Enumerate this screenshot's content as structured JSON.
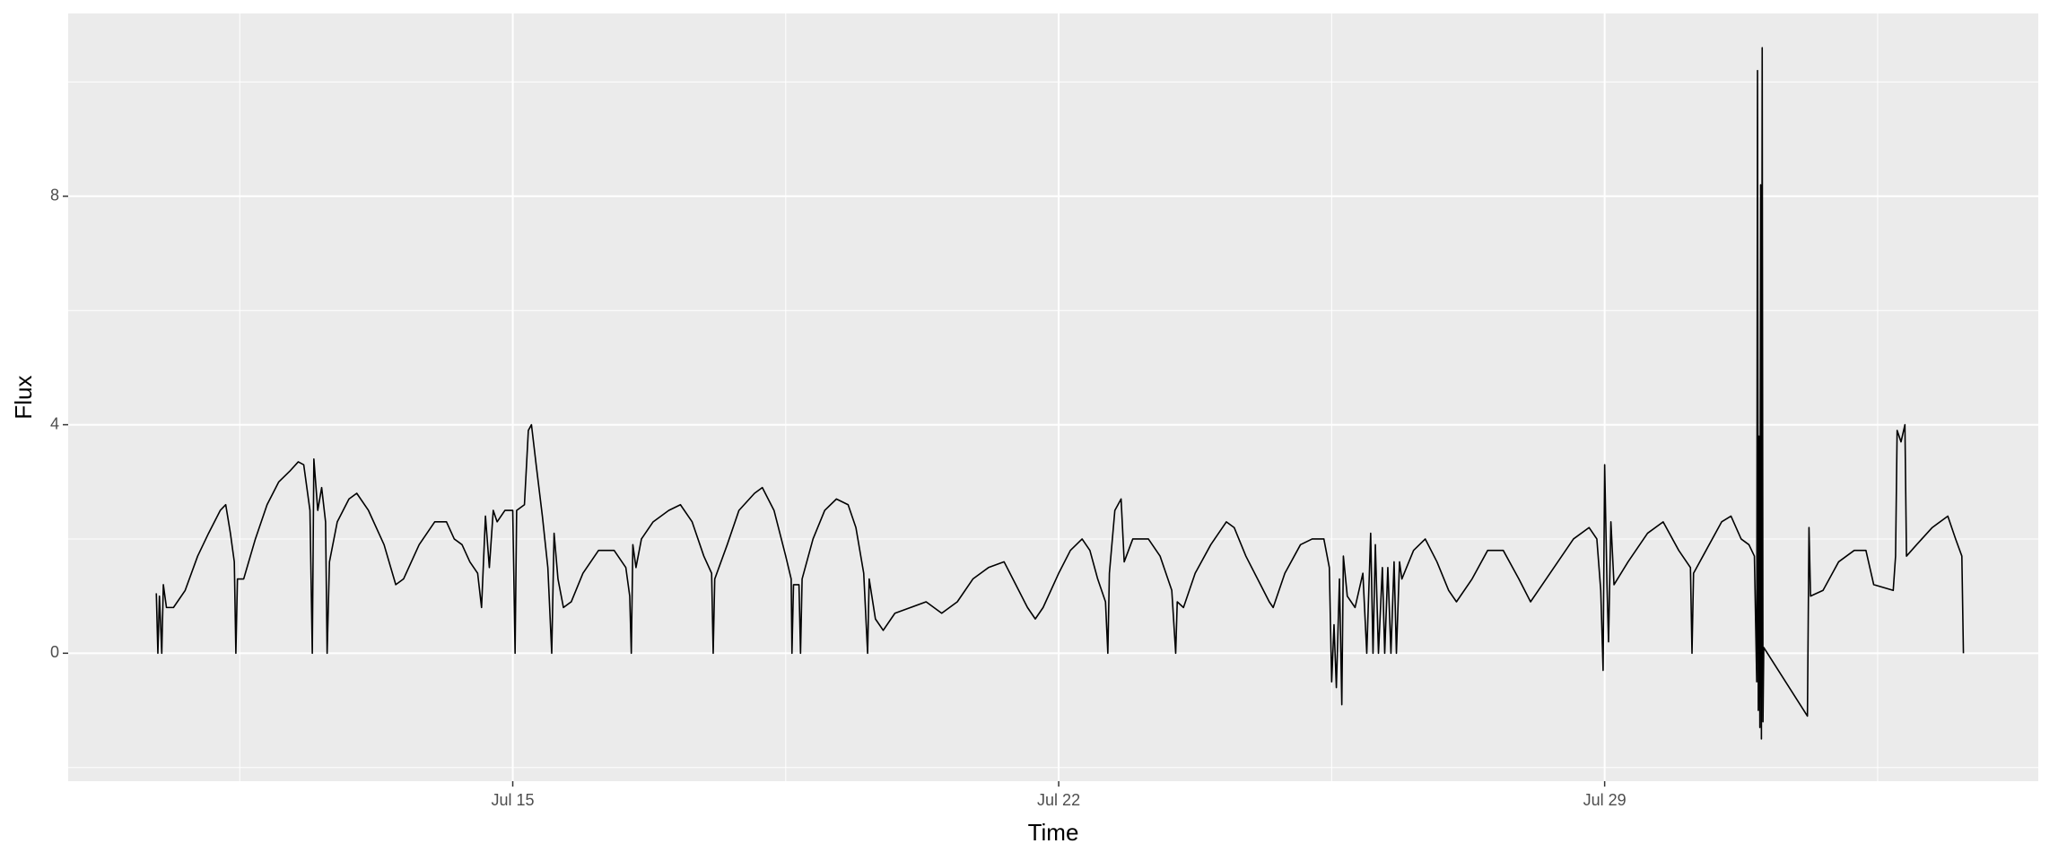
{
  "chart_data": {
    "type": "line",
    "x_label": "Time",
    "y_label": "Flux",
    "color": "#000000",
    "x": [
      10.43,
      10.45,
      10.47,
      10.5,
      10.52,
      10.56,
      10.65,
      10.8,
      10.96,
      11.1,
      11.25,
      11.32,
      11.38,
      11.43,
      11.45,
      11.47,
      11.55,
      11.7,
      11.85,
      12.0,
      12.15,
      12.25,
      12.32,
      12.4,
      12.43,
      12.45,
      12.5,
      12.55,
      12.6,
      12.62,
      12.65,
      12.75,
      12.9,
      13.0,
      13.15,
      13.35,
      13.5,
      13.6,
      13.8,
      14.0,
      14.15,
      14.25,
      14.35,
      14.45,
      14.55,
      14.6,
      14.65,
      14.7,
      14.75,
      14.8,
      14.9,
      15.0,
      15.03,
      15.05,
      15.15,
      15.2,
      15.24,
      15.3,
      15.38,
      15.45,
      15.5,
      15.53,
      15.58,
      15.65,
      15.75,
      15.9,
      16.1,
      16.3,
      16.45,
      16.5,
      16.52,
      16.54,
      16.58,
      16.65,
      16.8,
      17.0,
      17.15,
      17.3,
      17.45,
      17.55,
      17.57,
      17.59,
      17.75,
      17.9,
      18.1,
      18.2,
      18.35,
      18.5,
      18.57,
      18.58,
      18.6,
      18.67,
      18.69,
      18.71,
      18.85,
      19.0,
      19.15,
      19.3,
      19.4,
      19.5,
      19.55,
      19.57,
      19.65,
      19.75,
      19.9,
      20.1,
      20.3,
      20.5,
      20.7,
      20.9,
      21.1,
      21.3,
      21.45,
      21.6,
      21.7,
      21.8,
      22.0,
      22.15,
      22.3,
      22.4,
      22.5,
      22.6,
      22.63,
      22.65,
      22.72,
      22.8,
      22.84,
      22.95,
      23.15,
      23.3,
      23.45,
      23.5,
      23.52,
      23.6,
      23.75,
      23.95,
      24.15,
      24.25,
      24.4,
      24.55,
      24.7,
      24.75,
      24.9,
      25.1,
      25.25,
      25.4,
      25.47,
      25.5,
      25.53,
      25.56,
      25.6,
      25.63,
      25.65,
      25.7,
      25.8,
      25.9,
      25.95,
      26.0,
      26.03,
      26.06,
      26.1,
      26.15,
      26.18,
      26.22,
      26.26,
      26.3,
      26.33,
      26.37,
      26.4,
      26.55,
      26.7,
      26.85,
      27.0,
      27.1,
      27.3,
      27.5,
      27.7,
      27.9,
      28.05,
      28.2,
      28.4,
      28.6,
      28.8,
      28.9,
      28.95,
      28.98,
      29.0,
      29.03,
      29.05,
      29.08,
      29.12,
      29.3,
      29.55,
      29.75,
      29.95,
      30.1,
      30.12,
      30.14,
      30.3,
      30.5,
      30.62,
      30.75,
      30.85,
      30.92,
      30.95,
      30.96,
      30.97,
      30.98,
      30.99,
      31.0,
      31.01,
      31.02,
      31.03,
      31.04,
      31.6,
      31.62,
      31.64,
      31.8,
      32.0,
      32.2,
      32.35,
      32.45,
      32.7,
      32.73,
      32.75,
      32.8,
      32.85,
      32.87,
      33.0,
      33.2,
      33.4,
      33.5,
      33.58,
      33.6
    ],
    "values": [
      1.05,
      0,
      1.0,
      0,
      1.2,
      0.8,
      0.8,
      1.1,
      1.7,
      2.1,
      2.5,
      2.6,
      2.1,
      1.6,
      0,
      1.3,
      1.3,
      2.0,
      2.6,
      3.0,
      3.2,
      3.35,
      3.3,
      2.5,
      0,
      3.4,
      2.5,
      2.9,
      2.3,
      0,
      1.6,
      2.3,
      2.7,
      2.8,
      2.5,
      1.9,
      1.2,
      1.3,
      1.9,
      2.3,
      2.3,
      2.0,
      1.9,
      1.6,
      1.4,
      0.8,
      2.4,
      1.5,
      2.5,
      2.3,
      2.5,
      2.5,
      0,
      2.5,
      2.6,
      3.9,
      4.0,
      3.3,
      2.4,
      1.5,
      0,
      2.1,
      1.3,
      0.8,
      0.9,
      1.4,
      1.8,
      1.8,
      1.5,
      1.0,
      0,
      1.9,
      1.5,
      2.0,
      2.3,
      2.5,
      2.6,
      2.3,
      1.7,
      1.4,
      0,
      1.3,
      1.9,
      2.5,
      2.8,
      2.9,
      2.5,
      1.7,
      1.3,
      0,
      1.2,
      1.2,
      0,
      1.3,
      2.0,
      2.5,
      2.7,
      2.6,
      2.2,
      1.4,
      0,
      1.3,
      0.6,
      0.4,
      0.7,
      0.8,
      0.9,
      0.7,
      0.9,
      1.3,
      1.5,
      1.6,
      1.2,
      0.8,
      0.6,
      0.8,
      1.4,
      1.8,
      2.0,
      1.8,
      1.3,
      0.9,
      0,
      1.4,
      2.5,
      2.7,
      1.6,
      2.0,
      2.0,
      1.7,
      1.1,
      0,
      0.9,
      0.8,
      1.4,
      1.9,
      2.3,
      2.2,
      1.7,
      1.3,
      0.9,
      0.8,
      1.4,
      1.9,
      2.0,
      2.0,
      1.5,
      -0.5,
      0.5,
      -0.6,
      1.3,
      -0.9,
      1.7,
      1.0,
      0.8,
      1.4,
      0,
      2.1,
      0,
      1.9,
      0,
      1.5,
      0,
      1.5,
      0,
      1.6,
      0,
      1.6,
      1.3,
      1.8,
      2.0,
      1.6,
      1.1,
      0.9,
      1.3,
      1.8,
      1.8,
      1.3,
      0.9,
      1.2,
      1.6,
      2.0,
      2.2,
      2.0,
      1.1,
      -0.3,
      3.3,
      1.2,
      0.2,
      2.3,
      1.2,
      1.6,
      2.1,
      2.3,
      1.8,
      1.5,
      0,
      1.4,
      1.8,
      2.3,
      2.4,
      2.0,
      1.9,
      1.7,
      -0.5,
      10.2,
      -1.0,
      3.8,
      -1.3,
      8.2,
      -1.5,
      10.6,
      -1.2,
      0.1,
      -1.1,
      2.2,
      1.0,
      1.1,
      1.6,
      1.8,
      1.8,
      1.2,
      1.1,
      1.7,
      3.9,
      3.7,
      4.0,
      1.7,
      1.9,
      2.2,
      2.4,
      2.0,
      1.7,
      0
    ],
    "xlim": [
      9.3,
      34.56
    ],
    "xticks": [
      {
        "value": 15,
        "label": "Jul 15"
      },
      {
        "value": 22,
        "label": "Jul 22"
      },
      {
        "value": 29,
        "label": "Jul 29"
      }
    ],
    "ylim": [
      -2.24,
      11.2
    ],
    "yticks": [
      0,
      4,
      8
    ],
    "grid": true
  }
}
